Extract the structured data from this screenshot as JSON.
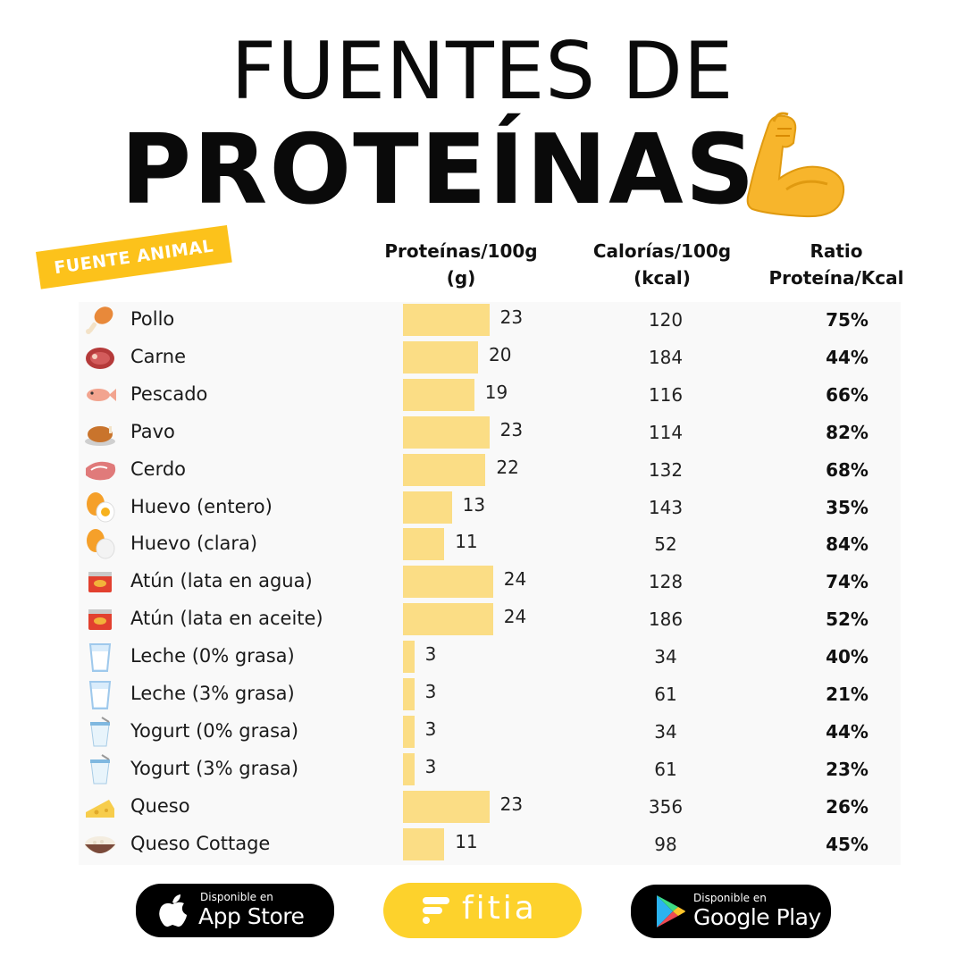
{
  "title": {
    "line1": "FUENTES DE",
    "line2": "PROTEÍNAS",
    "emoji_icon": "flexed-biceps-icon"
  },
  "category_label": "FUENTE ANIMAL",
  "columns": {
    "protein_header": [
      "Proteínas/100g",
      "(g)"
    ],
    "calories_header": [
      "Calorías/100g",
      "(kcal)"
    ],
    "ratio_header": [
      "Ratio",
      "Proteína/Kcal"
    ]
  },
  "chart_data": {
    "type": "table",
    "columns": [
      "Proteínas/100g (g)",
      "Calorías/100g (kcal)",
      "Ratio Proteína/Kcal"
    ],
    "rows": [
      {
        "name": "Pollo",
        "icon": "chicken-leg-icon",
        "protein": 23,
        "calories": 120,
        "ratio": "75%"
      },
      {
        "name": "Carne",
        "icon": "meat-icon",
        "protein": 20,
        "calories": 184,
        "ratio": "44%"
      },
      {
        "name": "Pescado",
        "icon": "fish-icon",
        "protein": 19,
        "calories": 116,
        "ratio": "66%"
      },
      {
        "name": "Pavo",
        "icon": "roast-turkey-icon",
        "protein": 23,
        "calories": 114,
        "ratio": "82%"
      },
      {
        "name": "Cerdo",
        "icon": "pork-cut-icon",
        "protein": 22,
        "calories": 132,
        "ratio": "68%"
      },
      {
        "name": "Huevo (entero)",
        "icon": "egg-icon",
        "protein": 13,
        "calories": 143,
        "ratio": "35%"
      },
      {
        "name": "Huevo (clara)",
        "icon": "egg-white-icon",
        "protein": 11,
        "calories": 52,
        "ratio": "84%"
      },
      {
        "name": "Atún (lata en agua)",
        "icon": "tuna-can-icon",
        "protein": 24,
        "calories": 128,
        "ratio": "74%"
      },
      {
        "name": "Atún (lata en aceite)",
        "icon": "tuna-can-icon",
        "protein": 24,
        "calories": 186,
        "ratio": "52%"
      },
      {
        "name": "Leche (0% grasa)",
        "icon": "milk-glass-icon",
        "protein": 3,
        "calories": 34,
        "ratio": "40%"
      },
      {
        "name": "Leche (3% grasa)",
        "icon": "milk-glass-icon",
        "protein": 3,
        "calories": 61,
        "ratio": "21%"
      },
      {
        "name": "Yogurt (0% grasa)",
        "icon": "yogurt-cup-icon",
        "protein": 3,
        "calories": 34,
        "ratio": "44%"
      },
      {
        "name": "Yogurt (3% grasa)",
        "icon": "yogurt-cup-icon",
        "protein": 3,
        "calories": 61,
        "ratio": "23%"
      },
      {
        "name": "Queso",
        "icon": "cheese-icon",
        "protein": 23,
        "calories": 356,
        "ratio": "26%"
      },
      {
        "name": "Queso Cottage",
        "icon": "cottage-cheese-bowl-icon",
        "protein": 11,
        "calories": 98,
        "ratio": "45%"
      }
    ]
  },
  "footer": {
    "app_store": {
      "small": "Disponible en",
      "big": "App Store",
      "icon": "apple-icon"
    },
    "brand": {
      "name": "fitia",
      "icon": "fitia-logo-icon"
    },
    "google_play": {
      "small": "Disponible en",
      "big": "Google Play",
      "icon": "google-play-icon"
    }
  },
  "colors": {
    "accent": "#fcc21b",
    "bar": "#fbdd85",
    "brand": "#fdd22c"
  }
}
